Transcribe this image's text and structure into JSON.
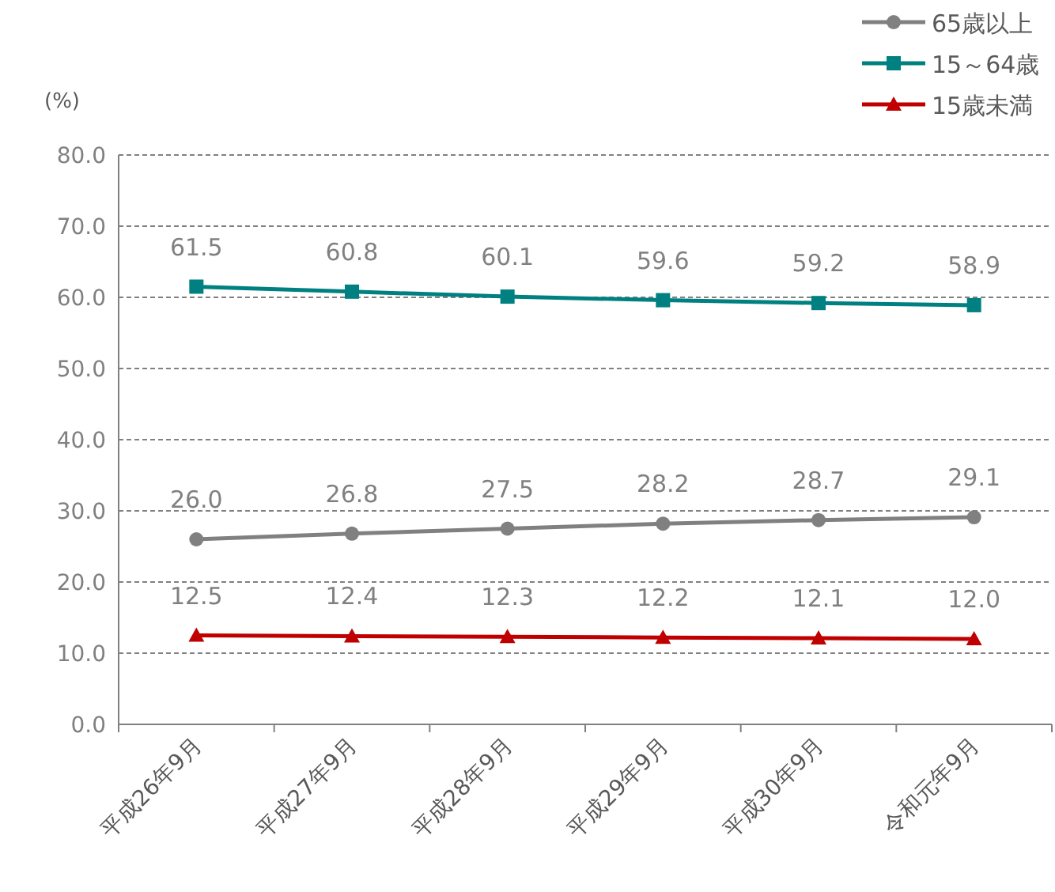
{
  "chart_data": {
    "type": "line",
    "ylabel": "(%)",
    "legend": "top right",
    "grid": "y",
    "categories": [
      "平成26年9月",
      "平成27年9月",
      "平成28年9月",
      "平成29年9月",
      "平成30年9月",
      "令和元年9月"
    ],
    "ylim": [
      0,
      80
    ],
    "yticks": [
      {
        "value": 0,
        "label": "0.0"
      },
      {
        "value": 10,
        "label": "10.0"
      },
      {
        "value": 20,
        "label": "20.0"
      },
      {
        "value": 30,
        "label": "30.0"
      },
      {
        "value": 40,
        "label": "40.0"
      },
      {
        "value": 50,
        "label": "50.0"
      },
      {
        "value": 60,
        "label": "60.0"
      },
      {
        "value": 70,
        "label": "70.0"
      },
      {
        "value": 80,
        "label": "80.0"
      }
    ],
    "series": [
      {
        "name": "65歳以上",
        "color": "#808080",
        "marker": "circle",
        "values": [
          26.0,
          26.8,
          27.5,
          28.2,
          28.7,
          29.1
        ],
        "value_labels": [
          "26.0",
          "26.8",
          "27.5",
          "28.2",
          "28.7",
          "29.1"
        ]
      },
      {
        "name": "15～64歳",
        "color": "#008080",
        "marker": "square",
        "values": [
          61.5,
          60.8,
          60.1,
          59.6,
          59.2,
          58.9
        ],
        "value_labels": [
          "61.5",
          "60.8",
          "60.1",
          "59.6",
          "59.2",
          "58.9"
        ]
      },
      {
        "name": "15歳未満",
        "color": "#c00000",
        "marker": "triangle",
        "values": [
          12.5,
          12.4,
          12.3,
          12.2,
          12.1,
          12.0
        ],
        "value_labels": [
          "12.5",
          "12.4",
          "12.3",
          "12.2",
          "12.1",
          "12.0"
        ]
      }
    ]
  }
}
